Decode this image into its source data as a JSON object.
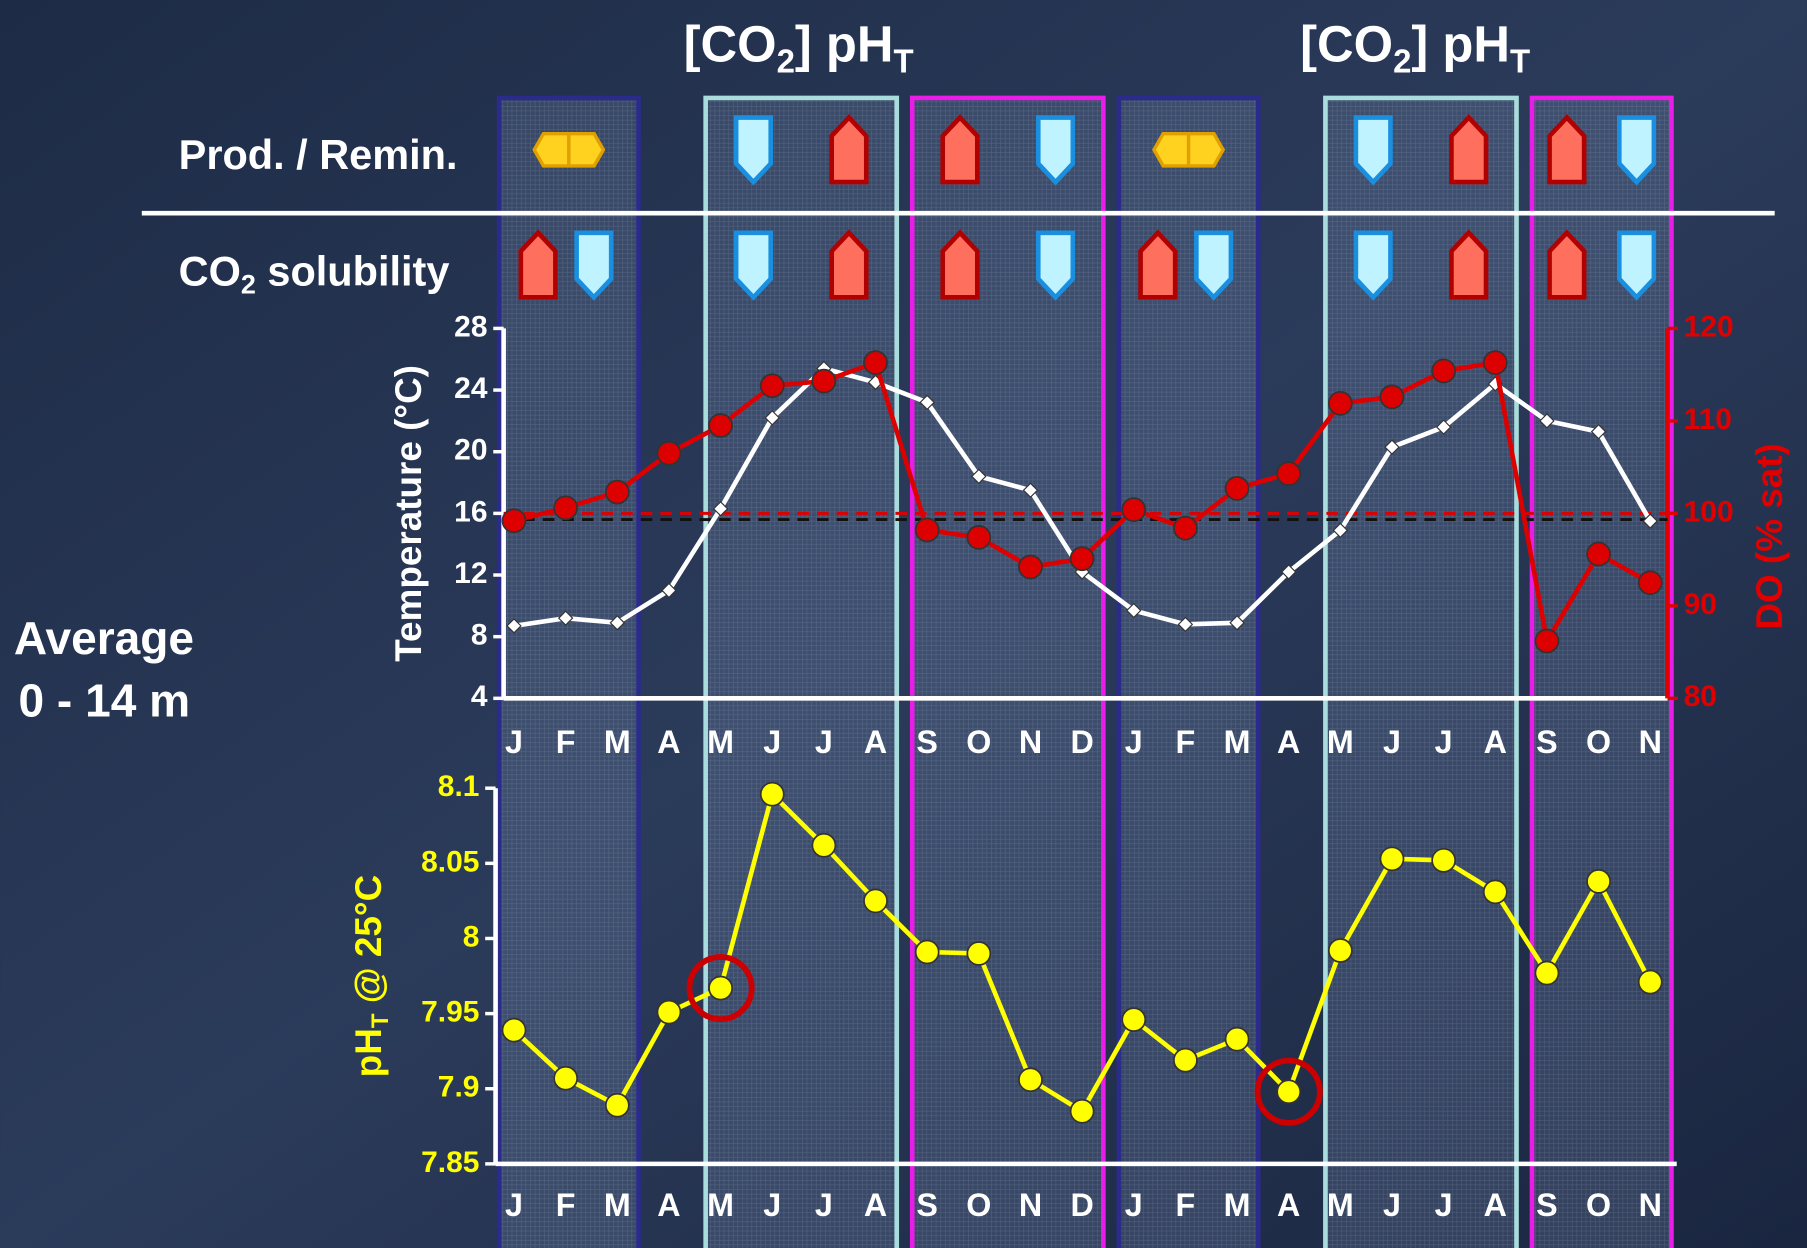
{
  "header": {
    "column_titles": [
      [
        "[CO",
        "2",
        "] pH",
        "T"
      ],
      [
        "[CO",
        "2",
        "] pH",
        "T"
      ]
    ],
    "row_labels": {
      "prod_remin": [
        "Prod. / Remin."
      ],
      "co2_solubility": [
        "CO",
        "2",
        " solubility"
      ]
    },
    "depth_label": [
      "Average",
      "0 - 14 m"
    ]
  },
  "chart_data": [
    {
      "type": "line",
      "categories": [
        "J",
        "F",
        "M",
        "A",
        "M",
        "J",
        "J",
        "A",
        "S",
        "O",
        "N",
        "D",
        "J",
        "F",
        "M",
        "A",
        "M",
        "J",
        "J",
        "A",
        "S",
        "O",
        "N"
      ],
      "ylabel": "Temperature (°C)",
      "y2label": "DO (% sat)",
      "ylim": [
        4,
        28
      ],
      "yticks": [
        4,
        8,
        12,
        16,
        20,
        24,
        28
      ],
      "y2lim": [
        80,
        120
      ],
      "y2ticks": [
        80,
        90,
        100,
        110,
        120
      ],
      "hlines": [
        {
          "axis": "y",
          "value": 15.6,
          "color": "#111111"
        },
        {
          "axis": "y2",
          "value": 100,
          "color": "#dd0000"
        }
      ],
      "series": [
        {
          "color": "#ffffff",
          "marker": "diamond",
          "values": [
            8.7,
            9.2,
            8.9,
            11.0,
            16.3,
            22.2,
            25.4,
            24.5,
            23.2,
            18.4,
            17.5,
            12.2,
            9.7,
            8.8,
            8.9,
            12.2,
            14.9,
            20.3,
            21.6,
            24.4,
            22.0,
            21.3,
            15.5
          ]
        },
        {
          "color": "#dd0000",
          "marker": "circle",
          "axis": "y2",
          "values": [
            99.2,
            100.6,
            102.3,
            106.5,
            109.5,
            113.8,
            114.3,
            116.3,
            98.2,
            97.4,
            94.2,
            95.1,
            100.4,
            98.4,
            102.7,
            104.3,
            111.9,
            112.6,
            115.4,
            116.3,
            86.2,
            95.6,
            92.5
          ]
        }
      ]
    },
    {
      "type": "line",
      "categories": [
        "J",
        "F",
        "M",
        "A",
        "M",
        "J",
        "J",
        "A",
        "S",
        "O",
        "N",
        "D",
        "J",
        "F",
        "M",
        "A",
        "M",
        "J",
        "J",
        "A",
        "S",
        "O",
        "N"
      ],
      "ylabel": [
        "pH",
        "T",
        " @ 25°C"
      ],
      "ylim": [
        7.85,
        8.1
      ],
      "yticks": [
        7.85,
        7.9,
        7.95,
        8,
        8.05,
        8.1
      ],
      "series": [
        {
          "color": "#ffff00",
          "marker": "circle",
          "values": [
            7.939,
            7.907,
            7.889,
            7.951,
            7.967,
            8.096,
            8.062,
            8.025,
            7.991,
            7.99,
            7.906,
            7.885,
            7.946,
            7.919,
            7.933,
            7.898,
            7.992,
            8.053,
            8.052,
            8.031,
            7.977,
            8.038,
            7.971
          ]
        }
      ]
    }
  ]
}
